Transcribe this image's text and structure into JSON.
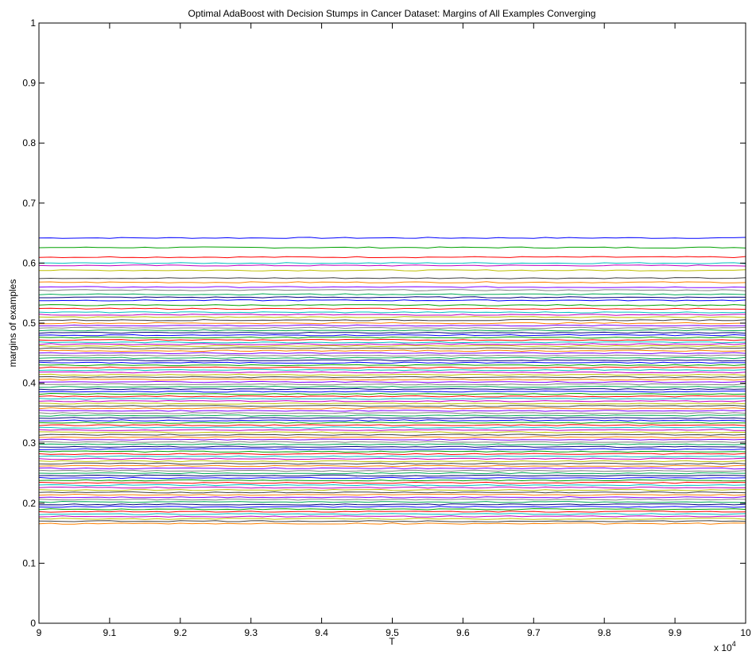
{
  "chart_data": {
    "type": "line",
    "title": "Optimal AdaBoost with Decision Stumps in Cancer Dataset: Margins of All Examples Converging",
    "xlabel": "T",
    "ylabel": "margins of examples",
    "x_exponent_label": "x 10",
    "x_exponent_power": "4",
    "xlim": [
      9,
      10
    ],
    "ylim": [
      0,
      1
    ],
    "x_ticks": [
      "9",
      "9.1",
      "9.2",
      "9.3",
      "9.4",
      "9.5",
      "9.6",
      "9.7",
      "9.8",
      "9.9",
      "10"
    ],
    "y_ticks": [
      "0",
      "0.1",
      "0.2",
      "0.3",
      "0.4",
      "0.5",
      "0.6",
      "0.7",
      "0.8",
      "0.9",
      "1"
    ],
    "series_colors": [
      "#0000ff",
      "#00a000",
      "#ff0000",
      "#00bfbf",
      "#bf00bf",
      "#bfbf00",
      "#404040",
      "#ff8000",
      "#8000ff",
      "#808080",
      "#00aa55",
      "#000080"
    ],
    "series_margins": [
      0.642,
      0.626,
      0.61,
      0.6,
      0.596,
      0.588,
      0.575,
      0.568,
      0.56,
      0.555,
      0.548,
      0.543,
      0.538,
      0.53,
      0.524,
      0.518,
      0.514,
      0.51,
      0.505,
      0.5,
      0.496,
      0.492,
      0.488,
      0.484,
      0.48,
      0.476,
      0.472,
      0.468,
      0.465,
      0.462,
      0.458,
      0.454,
      0.45,
      0.446,
      0.442,
      0.438,
      0.434,
      0.43,
      0.426,
      0.422,
      0.418,
      0.414,
      0.41,
      0.406,
      0.402,
      0.398,
      0.394,
      0.39,
      0.386,
      0.382,
      0.378,
      0.374,
      0.37,
      0.366,
      0.362,
      0.358,
      0.354,
      0.35,
      0.346,
      0.342,
      0.338,
      0.334,
      0.33,
      0.326,
      0.322,
      0.318,
      0.314,
      0.31,
      0.306,
      0.302,
      0.298,
      0.294,
      0.29,
      0.286,
      0.282,
      0.278,
      0.274,
      0.27,
      0.266,
      0.262,
      0.258,
      0.254,
      0.25,
      0.246,
      0.242,
      0.238,
      0.234,
      0.23,
      0.226,
      0.222,
      0.218,
      0.214,
      0.21,
      0.206,
      0.202,
      0.198,
      0.194,
      0.19,
      0.186,
      0.182,
      0.178,
      0.174,
      0.17,
      0.166
    ],
    "grid": false,
    "legend": "none"
  }
}
